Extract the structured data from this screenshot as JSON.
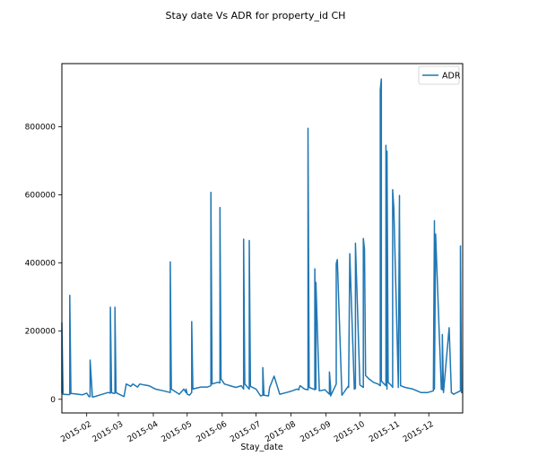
{
  "chart_data": {
    "type": "line",
    "title": "Stay date Vs ADR for property_id CH",
    "xlabel": "Stay_date",
    "ylabel": "",
    "x_tick_labels": [
      "2015-02",
      "2015-03",
      "2015-04",
      "2015-05",
      "2015-06",
      "2015-07",
      "2015-08",
      "2015-09",
      "2015-10",
      "2015-11",
      "2015-12"
    ],
    "y_ticks": [
      0,
      200000,
      400000,
      600000,
      800000
    ],
    "xlim": [
      "2015-01-10",
      "2015-12-31"
    ],
    "ylim": [
      -40000,
      985000
    ],
    "grid": false,
    "legend_position": "top-right",
    "colors": {
      "series": "#1f77b4"
    },
    "series": [
      {
        "name": "ADR",
        "x": [
          "2015-01-10",
          "2015-01-10",
          "2015-01-11",
          "2015-01-11",
          "2015-01-15",
          "2015-01-17",
          "2015-01-17",
          "2015-01-18",
          "2015-01-22",
          "2015-01-28",
          "2015-02-01",
          "2015-02-03",
          "2015-02-04",
          "2015-02-04",
          "2015-02-06",
          "2015-02-06",
          "2015-02-07",
          "2015-02-07",
          "2015-02-12",
          "2015-02-20",
          "2015-02-22",
          "2015-02-22",
          "2015-02-23",
          "2015-02-25",
          "2015-02-26",
          "2015-02-26",
          "2015-02-27",
          "2015-03-01",
          "2015-03-06",
          "2015-03-08",
          "2015-03-12",
          "2015-03-14",
          "2015-03-18",
          "2015-03-20",
          "2015-03-24",
          "2015-03-28",
          "2015-04-03",
          "2015-04-10",
          "2015-04-16",
          "2015-04-16",
          "2015-04-17",
          "2015-04-24",
          "2015-04-28",
          "2015-04-30",
          "2015-04-30",
          "2015-05-01",
          "2015-05-03",
          "2015-05-05",
          "2015-05-05",
          "2015-05-06",
          "2015-05-08",
          "2015-05-13",
          "2015-05-19",
          "2015-05-22",
          "2015-05-22",
          "2015-05-23",
          "2015-05-28",
          "2015-05-30",
          "2015-05-30",
          "2015-05-31",
          "2015-06-03",
          "2015-06-08",
          "2015-06-13",
          "2015-06-18",
          "2015-06-20",
          "2015-06-20",
          "2015-06-21",
          "2015-06-25",
          "2015-06-25",
          "2015-06-26",
          "2015-07-01",
          "2015-07-05",
          "2015-07-07",
          "2015-07-07",
          "2015-07-08",
          "2015-07-12",
          "2015-07-13",
          "2015-07-17",
          "2015-07-22",
          "2015-07-28",
          "2015-08-02",
          "2015-08-06",
          "2015-08-08",
          "2015-08-08",
          "2015-08-09",
          "2015-08-13",
          "2015-08-16",
          "2015-08-16",
          "2015-08-17",
          "2015-08-21",
          "2015-08-22",
          "2015-08-22",
          "2015-08-23",
          "2015-08-23",
          "2015-08-26",
          "2015-08-31",
          "2015-09-04",
          "2015-09-04",
          "2015-09-05",
          "2015-09-05",
          "2015-09-10",
          "2015-09-10",
          "2015-09-11",
          "2015-09-15",
          "2015-09-21",
          "2015-09-21",
          "2015-09-22",
          "2015-09-26",
          "2015-09-26",
          "2015-09-27",
          "2015-09-27",
          "2015-10-01",
          "2015-10-04",
          "2015-10-04",
          "2015-10-05",
          "2015-10-06",
          "2015-10-09",
          "2015-10-13",
          "2015-10-17",
          "2015-10-19",
          "2015-10-19",
          "2015-10-20",
          "2015-10-20",
          "2015-10-21",
          "2015-10-24",
          "2015-10-24",
          "2015-10-25",
          "2015-10-25",
          "2015-10-26",
          "2015-10-29",
          "2015-10-30",
          "2015-10-30",
          "2015-10-31",
          "2015-11-04",
          "2015-11-04",
          "2015-11-05",
          "2015-11-05",
          "2015-11-06",
          "2015-11-10",
          "2015-11-17",
          "2015-11-24",
          "2015-11-30",
          "2015-12-05",
          "2015-12-05",
          "2015-12-06",
          "2015-12-06",
          "2015-12-07",
          "2015-12-12",
          "2015-12-12",
          "2015-12-13",
          "2015-12-13",
          "2015-12-14",
          "2015-12-19",
          "2015-12-21",
          "2015-12-23",
          "2015-12-26",
          "2015-12-29",
          "2015-12-29",
          "2015-12-30",
          "2015-12-31"
        ],
        "y": [
          18000,
          225000,
          25000,
          15000,
          14000,
          14000,
          305000,
          17000,
          16000,
          13000,
          18000,
          8000,
          8000,
          115000,
          10000,
          7000,
          7000,
          7000,
          12000,
          20000,
          18000,
          270000,
          20000,
          17000,
          18000,
          270000,
          20000,
          16000,
          8000,
          45000,
          38000,
          45000,
          36000,
          45000,
          42000,
          40000,
          30000,
          25000,
          20000,
          403000,
          30000,
          15000,
          30000,
          20000,
          30000,
          15000,
          12000,
          20000,
          228000,
          30000,
          32000,
          36000,
          36000,
          40000,
          607000,
          45000,
          50000,
          48000,
          563000,
          60000,
          45000,
          40000,
          35000,
          40000,
          30000,
          470000,
          45000,
          30000,
          466000,
          38000,
          30000,
          10000,
          12000,
          93000,
          12000,
          10000,
          35000,
          68000,
          15000,
          20000,
          25000,
          30000,
          28000,
          32000,
          40000,
          30000,
          28000,
          795000,
          35000,
          30000,
          28000,
          383000,
          30000,
          343000,
          25000,
          28000,
          15000,
          80000,
          35000,
          10000,
          45000,
          398000,
          410000,
          12000,
          40000,
          35000,
          427000,
          35000,
          30000,
          32000,
          458000,
          42000,
          35000,
          472000,
          440000,
          70000,
          60000,
          50000,
          45000,
          40000,
          908000,
          940000,
          55000,
          50000,
          40000,
          745000,
          30000,
          728000,
          50000,
          40000,
          35000,
          615000,
          562000,
          45000,
          35000,
          598000,
          555000,
          40000,
          35000,
          30000,
          20000,
          20000,
          25000,
          25000,
          524000,
          30000,
          485000,
          35000,
          30000,
          28000,
          190000,
          20000,
          210000,
          20000,
          15000,
          20000,
          25000,
          450000,
          20000,
          20000
        ]
      }
    ]
  }
}
